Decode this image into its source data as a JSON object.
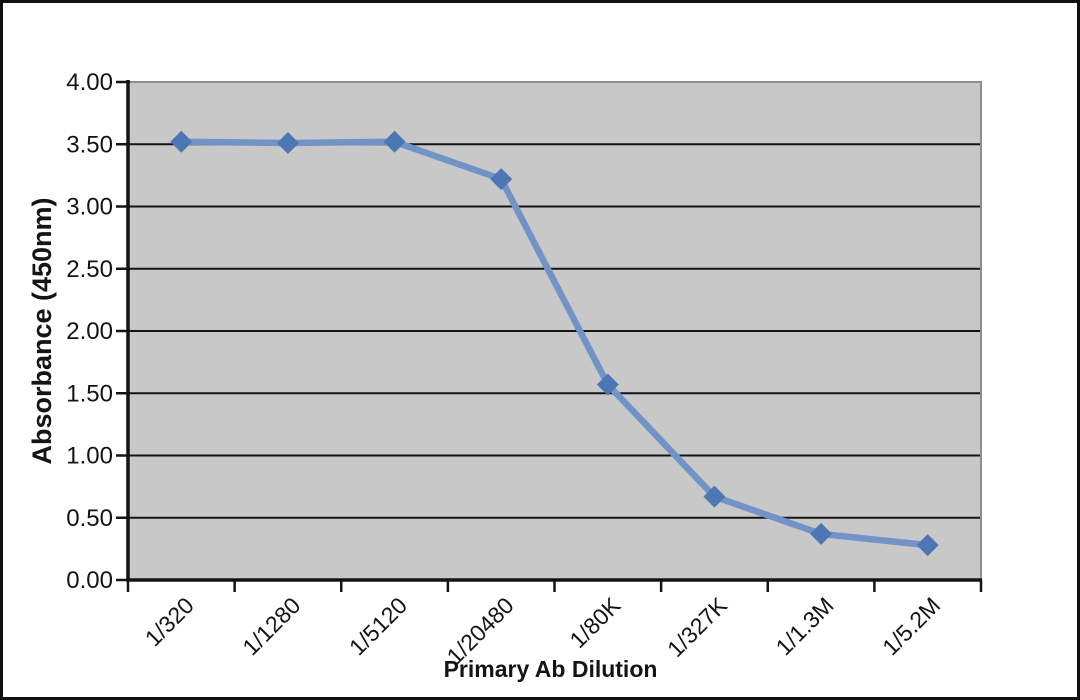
{
  "chart_data": {
    "type": "line",
    "xlabel": "Primary Ab Dilution",
    "ylabel": "Absorbance (450nm)",
    "categories": [
      "1/320",
      "1/1280",
      "1/5120",
      "1/20480",
      "1/80K",
      "1/327K",
      "1/1.3M",
      "1/5.2M"
    ],
    "values": [
      3.52,
      3.51,
      3.52,
      3.22,
      1.57,
      0.67,
      0.37,
      0.28
    ],
    "ylim": [
      0,
      4
    ],
    "ytick_step": 0.5,
    "ytick_labels": [
      "0.00",
      "0.50",
      "1.00",
      "1.50",
      "2.00",
      "2.50",
      "3.00",
      "3.50",
      "4.00"
    ],
    "grid": "horizontal-black-lines",
    "legend": "none",
    "marker_shape": "diamond",
    "colors": {
      "line": "#7293c6",
      "marker": "#4d77b4",
      "plot_bg": "#c8c8c8",
      "grid": "#141414",
      "axis": "#141414",
      "plot_border": "#8e8e8e",
      "text": "#141414",
      "frame": "#101010",
      "background": "#ffffff"
    }
  }
}
